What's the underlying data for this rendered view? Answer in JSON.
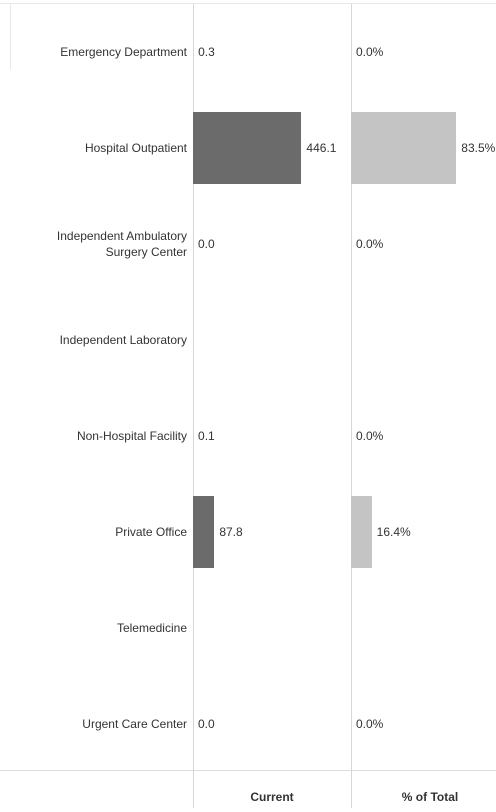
{
  "chart_data": {
    "type": "bar",
    "orientation": "horizontal",
    "categories": [
      "Emergency Department",
      "Hospital Outpatient",
      "Independent Ambulatory Surgery Center",
      "Independent Laboratory",
      "Non-Hospital Facility",
      "Private Office",
      "Telemedicine",
      "Urgent Care Center"
    ],
    "series": [
      {
        "name": "Current",
        "color": "#6b6b6b",
        "xlim": [
          0,
          650
        ],
        "values": [
          0.3,
          446.1,
          0,
          null,
          0.1,
          87.8,
          null,
          0
        ],
        "value_labels": [
          "0.3",
          "446.1",
          "0.0",
          null,
          "0.1",
          "87.8",
          null,
          "0.0"
        ]
      },
      {
        "name": "% of Total",
        "color": "#c4c4c4",
        "xlim": [
          0,
          115
        ],
        "values": [
          0,
          83.5,
          0,
          null,
          0,
          16.4,
          null,
          0
        ],
        "value_labels": [
          "0.0%",
          "83.5%",
          "0.0%",
          null,
          "0.0%",
          "16.4%",
          null,
          "0.0%"
        ]
      }
    ]
  }
}
